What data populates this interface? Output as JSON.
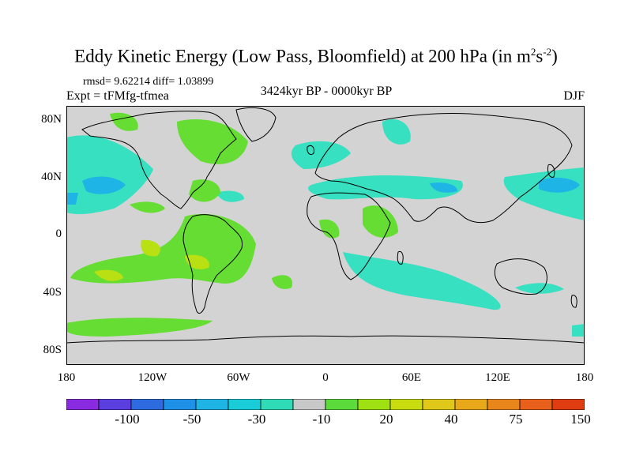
{
  "header": {
    "title_main": "Eddy Kinetic Energy (Low Pass, Bloomfield) at 200 hPa (in m",
    "title_sup1": "2",
    "title_mid": "s",
    "title_sup2": "-2",
    "title_end": ")",
    "stats": "rmsd= 9.62214 diff= 1.03899",
    "expt": "Expt = tFMfg-tfmea",
    "period": "3424kyr BP - 0000kyr BP",
    "season": "DJF"
  },
  "axes": {
    "lat_labels": [
      "80N",
      "40N",
      "0",
      "40S",
      "80S"
    ],
    "lon_labels": [
      "180",
      "120W",
      "60W",
      "0",
      "60E",
      "120E",
      "180"
    ]
  },
  "colorbar": {
    "labels": [
      "-100",
      "-50",
      "-30",
      "-10",
      "20",
      "40",
      "75",
      "150"
    ],
    "colors": [
      "#8a2be2",
      "#5a3ee0",
      "#2f6be0",
      "#1e90e8",
      "#1fb4e6",
      "#19cdd8",
      "#2fdcb8",
      "#c8c8c8",
      "#5cdc3c",
      "#9ee012",
      "#c8dc10",
      "#e0c81a",
      "#e8a81a",
      "#e8861c",
      "#e8601c",
      "#e03c12"
    ]
  },
  "colors": {
    "land_fill": "#d3d3d3",
    "negative_anomaly": "#36e0c0",
    "strong_negative": "#1fb4e6",
    "positive_anomaly": "#66dd33",
    "strong_positive": "#b8e012",
    "coastline": "#000000"
  }
}
